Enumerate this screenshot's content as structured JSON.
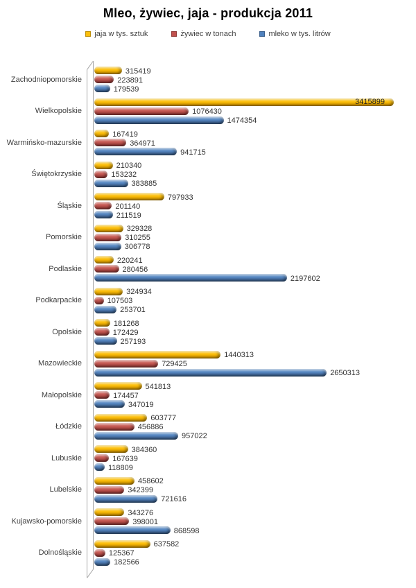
{
  "title": "Mleo, żywiec, jaja - produkcja 2011",
  "legend": [
    {
      "label": "jaja w tys. sztuk",
      "color": "#fcbe0b"
    },
    {
      "label": "żywiec w tonach",
      "color": "#c0504d"
    },
    {
      "label": "mleko w tys. litrów",
      "color": "#4f81bd"
    }
  ],
  "chart_data": {
    "type": "bar",
    "orientation": "horizontal",
    "title": "Mleo, żywiec, jaja - produkcja 2011",
    "legend_position": "top",
    "value_labels": true,
    "grid": false,
    "xlim": [
      0,
      3415899
    ],
    "categories": [
      "Zachodniopomorskie",
      "Wielkopolskie",
      "Warmińsko-mazurskie",
      "Świętokrzyskie",
      "Śląskie",
      "Pomorskie",
      "Podlaskie",
      "Podkarpackie",
      "Opolskie",
      "Mazowieckie",
      "Małopolskie",
      "Łódzkie",
      "Lubuskie",
      "Lubelskie",
      "Kujawsko-pomorskie",
      "Dolnośląskie"
    ],
    "series": [
      {
        "name": "jaja w tys. sztuk",
        "slug": "jaja",
        "color": "#fcbe0b",
        "values": [
          315419,
          3415899,
          167419,
          210340,
          797933,
          329328,
          220241,
          324934,
          181268,
          1440313,
          541813,
          603777,
          384360,
          458602,
          343276,
          637582
        ]
      },
      {
        "name": "żywiec w tonach",
        "slug": "zywiec",
        "color": "#c0504d",
        "values": [
          223891,
          1076430,
          364971,
          153232,
          201140,
          310255,
          280456,
          107503,
          172429,
          729425,
          174457,
          456886,
          167639,
          342399,
          398001,
          125367
        ]
      },
      {
        "name": "mleko w tys. litrów",
        "slug": "mleko",
        "color": "#4f81bd",
        "values": [
          179539,
          1474354,
          941715,
          383885,
          211519,
          306778,
          2197602,
          253701,
          257193,
          2650313,
          347019,
          957022,
          118809,
          721616,
          868598,
          182566
        ]
      }
    ]
  }
}
